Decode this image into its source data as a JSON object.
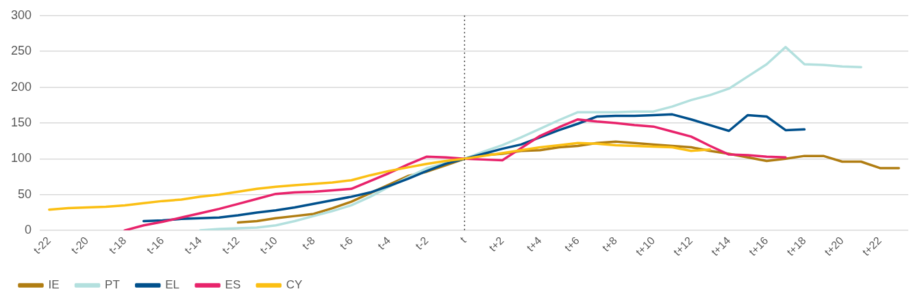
{
  "chart_data": {
    "type": "line",
    "categories": [
      "t-22",
      null,
      "t-20",
      null,
      "t-18",
      null,
      "t-16",
      null,
      "t-14",
      null,
      "t-12",
      null,
      "t-10",
      null,
      "t-8",
      null,
      "t-6",
      null,
      "t-4",
      null,
      "t-2",
      null,
      "t",
      null,
      "t+2",
      null,
      "t+4",
      null,
      "t+6",
      null,
      "t+8",
      null,
      "t+10",
      null,
      "t+12",
      null,
      "t+14",
      null,
      "t+16",
      null,
      "t+18",
      null,
      "t+20",
      null,
      "t+22",
      null
    ],
    "series": [
      {
        "name": "IE",
        "color": "#b07d12",
        "values": [
          null,
          null,
          null,
          null,
          null,
          null,
          null,
          null,
          null,
          null,
          11,
          13,
          17,
          20,
          23,
          31,
          40,
          52,
          64,
          76,
          82,
          91,
          100,
          105,
          107,
          111,
          112,
          116,
          118,
          122,
          124,
          122,
          120,
          118,
          116,
          111,
          107,
          102,
          97,
          100,
          104,
          104,
          96,
          96,
          87,
          87
        ]
      },
      {
        "name": "PT",
        "color": "#b3e0de",
        "values": [
          null,
          null,
          null,
          null,
          null,
          null,
          null,
          null,
          0,
          2,
          3,
          4,
          7,
          13,
          20,
          27,
          35,
          47,
          61,
          74,
          87,
          94,
          100,
          110,
          119,
          130,
          142,
          154,
          165,
          165,
          165,
          166,
          166,
          173,
          182,
          189,
          198,
          215,
          232,
          256,
          232,
          231,
          229,
          228,
          null,
          null
        ]
      },
      {
        "name": "EL",
        "color": "#00508c",
        "values": [
          null,
          null,
          null,
          null,
          null,
          13,
          14,
          16,
          17,
          18,
          21,
          25,
          28,
          32,
          37,
          42,
          47,
          53,
          62,
          72,
          83,
          93,
          100,
          107,
          114,
          120,
          130,
          140,
          149,
          159,
          160,
          160,
          161,
          162,
          155,
          147,
          139,
          161,
          159,
          140,
          141,
          null,
          null,
          null,
          null,
          null
        ]
      },
      {
        "name": "ES",
        "color": "#e8236b",
        "values": [
          null,
          null,
          null,
          null,
          0,
          7,
          12,
          18,
          24,
          30,
          37,
          44,
          51,
          53,
          54,
          56,
          58,
          69,
          80,
          92,
          103,
          102,
          100,
          99,
          98,
          115,
          132,
          144,
          155,
          152,
          150,
          147,
          145,
          138,
          131,
          118,
          106,
          105,
          103,
          102,
          null,
          null,
          null,
          null,
          null,
          null
        ]
      },
      {
        "name": "CY",
        "color": "#fbbf13",
        "values": [
          29,
          31,
          32,
          33,
          35,
          38,
          41,
          43,
          47,
          50,
          54,
          58,
          61,
          63,
          65,
          67,
          70,
          77,
          83,
          88,
          93,
          97,
          100,
          104,
          108,
          112,
          116,
          119,
          122,
          121,
          119,
          118,
          117,
          116,
          111,
          113,
          null,
          null,
          null,
          null,
          null,
          null,
          null,
          null,
          null,
          null
        ]
      }
    ],
    "ylim": [
      0,
      300
    ],
    "yticks": [
      0,
      50,
      100,
      150,
      200,
      250,
      300
    ],
    "grid": "y",
    "legend": "bottom left",
    "marker": "none",
    "line_style": "solid",
    "ref_lines": [
      {
        "axis": "x",
        "value": "t",
        "color": "#404040",
        "line_style": "dotted"
      }
    ]
  }
}
